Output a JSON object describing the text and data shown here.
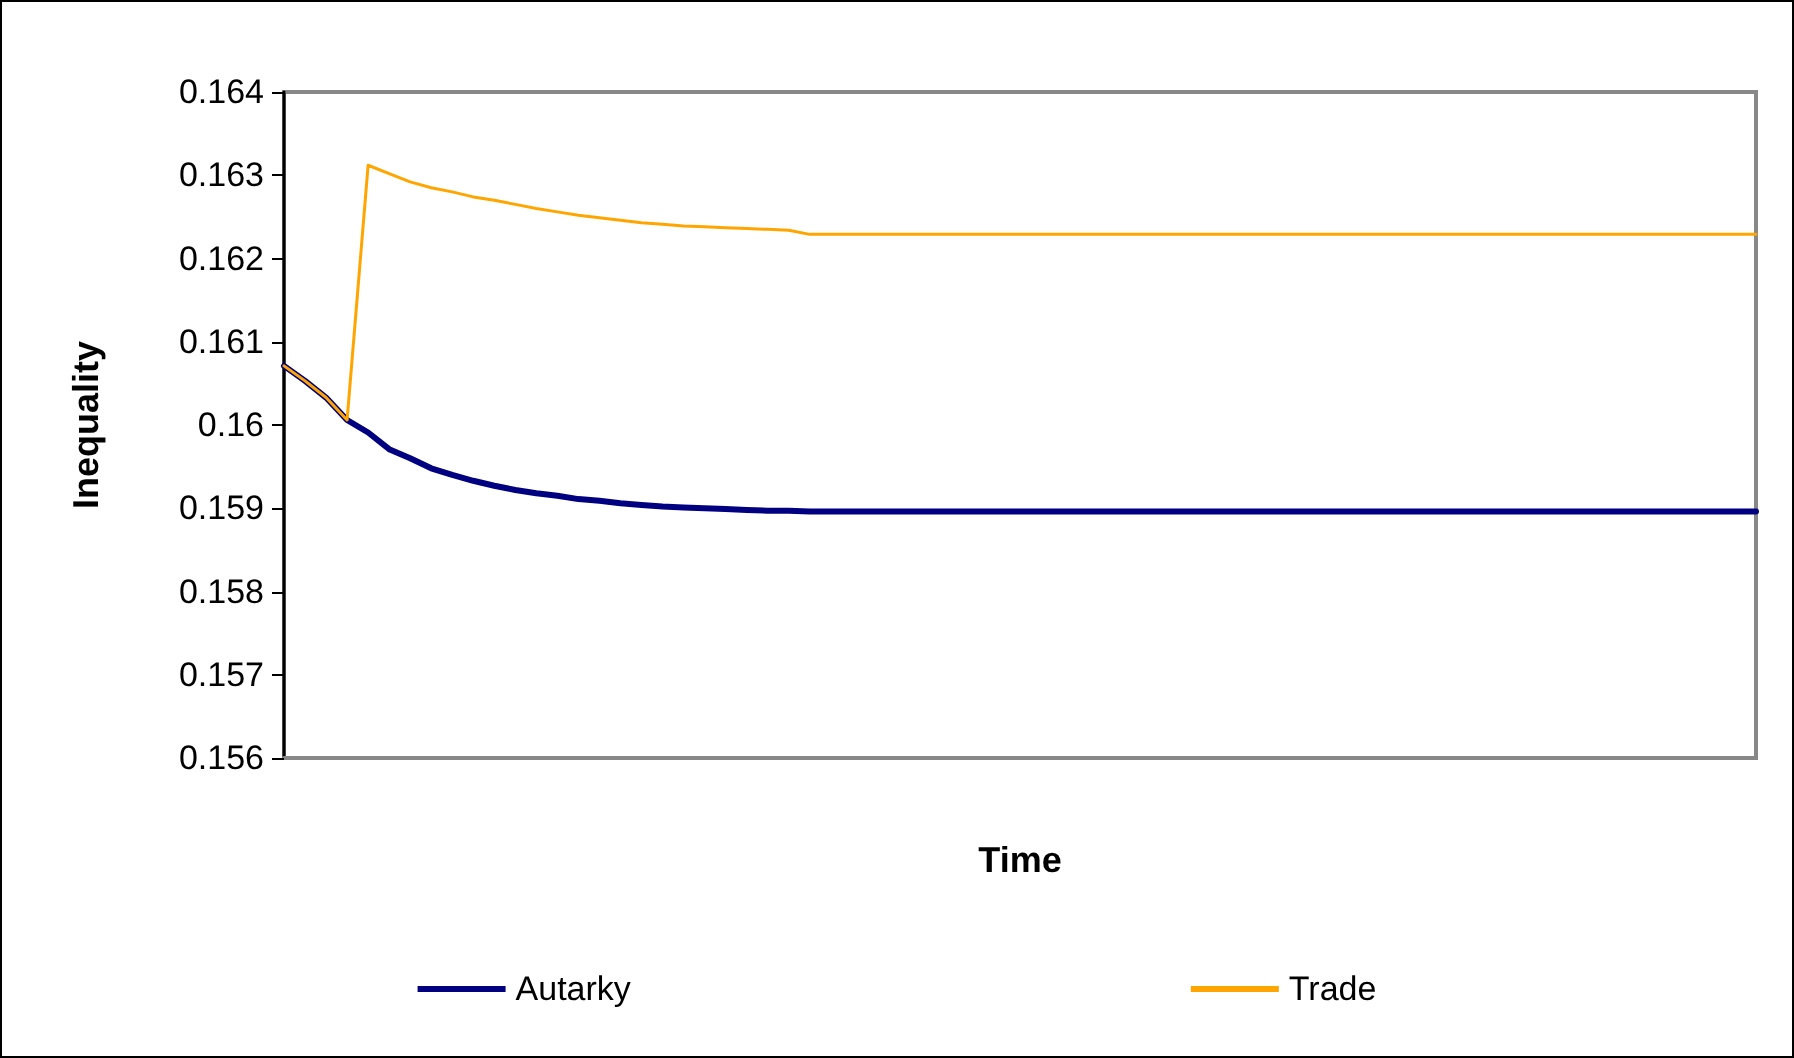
{
  "chart_data": {
    "type": "line",
    "xlabel": "Time",
    "ylabel": "Inequality",
    "categories": [
      null,
      null,
      null,
      null,
      null,
      null,
      null,
      null,
      null,
      null,
      null,
      null,
      null,
      null,
      null,
      null,
      null,
      null,
      null,
      null,
      null,
      null,
      null,
      null,
      null,
      null,
      null,
      null,
      null,
      null,
      null,
      null,
      null,
      null,
      null,
      null,
      null,
      null,
      null,
      null,
      null,
      null,
      null,
      null,
      null,
      null,
      null,
      null,
      null,
      null,
      null,
      null,
      null,
      null,
      null,
      null,
      null,
      null,
      null,
      null,
      null,
      null,
      null,
      null,
      null,
      null,
      null,
      null,
      null,
      null,
      null
    ],
    "series": [
      {
        "name": "Autarky",
        "color": "#000080",
        "values": [
          0.16071,
          0.16053,
          0.16033,
          0.16006,
          0.15991,
          0.15971,
          0.1596,
          0.15948,
          0.1594,
          0.15933,
          0.15927,
          0.15922,
          0.15918,
          0.15915,
          0.15911,
          0.15909,
          0.15906,
          0.15904,
          0.15902,
          0.15901,
          0.159,
          0.15899,
          0.15898,
          0.15897,
          0.15897,
          0.15896,
          0.15896,
          0.15896,
          0.15896,
          0.15896,
          0.15896,
          0.15896,
          0.15896,
          0.15896,
          0.15896,
          0.15896,
          0.15896,
          0.15896,
          0.15896,
          0.15896,
          0.15896,
          0.15896,
          0.15896,
          0.15896,
          0.15896,
          0.15896,
          0.15896,
          0.15896,
          0.15896,
          0.15896,
          0.15896,
          0.15896,
          0.15896,
          0.15896,
          0.15896,
          0.15896,
          0.15896,
          0.15896,
          0.15896,
          0.15896,
          0.15896,
          0.15896,
          0.15896,
          0.15896,
          0.15896,
          0.15896,
          0.15896,
          0.15896,
          0.15896,
          0.15896,
          0.15896
        ]
      },
      {
        "name": "Trade",
        "color": "#ffa500",
        "values": [
          0.16071,
          0.16053,
          0.16033,
          0.16006,
          0.16312,
          0.16302,
          0.16292,
          0.16285,
          0.1628,
          0.16274,
          0.1627,
          0.16265,
          0.1626,
          0.16256,
          0.16252,
          0.16249,
          0.16246,
          0.16243,
          0.16241,
          0.16239,
          0.16238,
          0.16237,
          0.16236,
          0.16235,
          0.16234,
          0.16229,
          0.16229,
          0.16229,
          0.16229,
          0.16229,
          0.16229,
          0.16229,
          0.16229,
          0.16229,
          0.16229,
          0.16229,
          0.16229,
          0.16229,
          0.16229,
          0.16229,
          0.16229,
          0.16229,
          0.16229,
          0.16229,
          0.16229,
          0.16229,
          0.16229,
          0.16229,
          0.16229,
          0.16229,
          0.16229,
          0.16229,
          0.16229,
          0.16229,
          0.16229,
          0.16229,
          0.16229,
          0.16229,
          0.16229,
          0.16229,
          0.16229,
          0.16229,
          0.16229,
          0.16229,
          0.16229,
          0.16229,
          0.16229,
          0.16229,
          0.16229,
          0.16229,
          0.16229
        ]
      }
    ],
    "ylim": [
      0.156,
      0.164
    ],
    "yticks": [
      0.156,
      0.157,
      0.158,
      0.159,
      0.16,
      0.161,
      0.162,
      0.163,
      0.164
    ],
    "tick_labels": "y",
    "grid": false,
    "legend": "bottom",
    "marker": "none",
    "line_style": "solid"
  }
}
